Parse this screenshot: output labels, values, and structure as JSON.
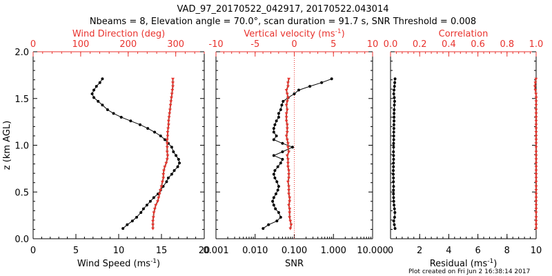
{
  "figure": {
    "title_line1": "VAD_97_20170522_042917, 20170522.043014",
    "title_line2": "Nbeams = 8, Elevation angle = 70.0°, scan duration = 91.7 s, SNR Threshold = 0.008",
    "footer": "Plot created on Fri Jun  2 16:38:14 2017",
    "colors": {
      "primary": "#000000",
      "secondary": "#e8322d",
      "secondary_line": "#b04a3a"
    }
  },
  "chart_data": [
    {
      "type": "line",
      "panel": "wind",
      "ylabel": "z (km AGL)",
      "ylim": [
        0,
        2
      ],
      "yticks": [
        "0.0",
        "0.5",
        "1.0",
        "1.5",
        "2.0"
      ],
      "x_bottom": {
        "label": "Wind Speed (ms",
        "sup": "-1",
        "tail": ")",
        "lim": [
          0,
          20
        ],
        "ticks": [
          "0",
          "5",
          "10",
          "15",
          "20"
        ]
      },
      "x_top": {
        "label": "Wind Direction (deg)",
        "lim": [
          0,
          360
        ],
        "ticks": [
          "0",
          "100",
          "200",
          "300"
        ]
      },
      "series": [
        {
          "name": "Wind Speed",
          "axis": "bottom",
          "color": "#000000",
          "z": [
            0.11,
            0.15,
            0.19,
            0.23,
            0.28,
            0.32,
            0.36,
            0.4,
            0.44,
            0.48,
            0.52,
            0.56,
            0.61,
            0.65,
            0.69,
            0.73,
            0.77,
            0.81,
            0.85,
            0.89,
            0.93,
            0.98,
            1.02,
            1.06,
            1.1,
            1.14,
            1.18,
            1.22,
            1.26,
            1.3,
            1.34,
            1.38,
            1.43,
            1.47,
            1.51,
            1.55,
            1.59,
            1.63,
            1.67,
            1.71
          ],
          "values": [
            10.5,
            11.0,
            11.6,
            12.1,
            12.6,
            12.9,
            13.3,
            13.7,
            14.1,
            14.6,
            14.9,
            15.2,
            15.6,
            15.8,
            16.2,
            16.5,
            16.9,
            17.1,
            17.0,
            16.7,
            16.4,
            16.2,
            15.8,
            15.4,
            14.9,
            14.2,
            13.4,
            12.5,
            11.4,
            10.3,
            9.4,
            8.7,
            8.1,
            7.6,
            7.1,
            6.9,
            7.1,
            7.4,
            7.8,
            8.1
          ]
        },
        {
          "name": "Wind Direction",
          "axis": "top",
          "color": "#b04a3a",
          "z": [
            0.11,
            0.15,
            0.19,
            0.23,
            0.28,
            0.32,
            0.36,
            0.4,
            0.44,
            0.48,
            0.52,
            0.56,
            0.61,
            0.65,
            0.69,
            0.73,
            0.77,
            0.81,
            0.85,
            0.89,
            0.93,
            0.98,
            1.02,
            1.06,
            1.1,
            1.14,
            1.18,
            1.22,
            1.26,
            1.3,
            1.34,
            1.38,
            1.43,
            1.47,
            1.51,
            1.55,
            1.59,
            1.63,
            1.67,
            1.71
          ],
          "values": [
            252,
            252,
            252,
            253,
            254,
            256,
            258,
            262,
            264,
            266,
            268,
            270,
            272,
            274,
            274,
            275,
            277,
            280,
            282,
            283,
            282,
            282,
            282,
            282,
            283,
            283,
            284,
            285,
            285,
            286,
            287,
            288,
            289,
            290,
            291,
            292,
            293,
            294,
            294,
            294
          ]
        }
      ]
    },
    {
      "type": "line",
      "panel": "snr_w",
      "ylim": [
        0,
        2
      ],
      "x_bottom": {
        "label": "SNR",
        "scale": "log",
        "lim": [
          0.001,
          10
        ],
        "ticks": [
          "0.001",
          "0.010",
          "0.100",
          "1.000",
          "10.000"
        ],
        "tick_values": [
          0.001,
          0.01,
          0.1,
          1,
          10
        ]
      },
      "x_top": {
        "label": "Vertical velocity (ms",
        "sup": "-1",
        "tail": ")",
        "lim": [
          -10,
          10
        ],
        "ticks": [
          "-10",
          "-5",
          "0",
          "5",
          "10"
        ]
      },
      "reference_line": {
        "axis": "top",
        "value": 0,
        "style": "dotted"
      },
      "series": [
        {
          "name": "SNR",
          "axis": "bottom",
          "color": "#000000",
          "z": [
            0.11,
            0.15,
            0.19,
            0.23,
            0.28,
            0.32,
            0.36,
            0.4,
            0.44,
            0.48,
            0.52,
            0.56,
            0.61,
            0.65,
            0.69,
            0.73,
            0.77,
            0.81,
            0.85,
            0.89,
            0.93,
            0.98,
            1.02,
            1.06,
            1.1,
            1.14,
            1.18,
            1.22,
            1.26,
            1.3,
            1.34,
            1.38,
            1.43,
            1.47,
            1.51,
            1.55,
            1.59,
            1.63,
            1.67,
            1.71
          ],
          "values": [
            0.016,
            0.022,
            0.036,
            0.045,
            0.04,
            0.033,
            0.03,
            0.028,
            0.03,
            0.034,
            0.038,
            0.04,
            0.036,
            0.032,
            0.03,
            0.032,
            0.038,
            0.045,
            0.05,
            0.03,
            0.05,
            0.09,
            0.05,
            0.03,
            0.035,
            0.03,
            0.03,
            0.032,
            0.035,
            0.04,
            0.04,
            0.045,
            0.048,
            0.052,
            0.07,
            0.1,
            0.13,
            0.25,
            0.5,
            0.9
          ]
        },
        {
          "name": "Vertical velocity",
          "axis": "top",
          "color": "#b04a3a",
          "z": [
            0.11,
            0.15,
            0.19,
            0.23,
            0.28,
            0.32,
            0.36,
            0.4,
            0.44,
            0.48,
            0.52,
            0.56,
            0.61,
            0.65,
            0.69,
            0.73,
            0.77,
            0.81,
            0.85,
            0.89,
            0.93,
            0.98,
            1.02,
            1.06,
            1.1,
            1.14,
            1.18,
            1.22,
            1.26,
            1.3,
            1.34,
            1.38,
            1.43,
            1.47,
            1.51,
            1.55,
            1.59,
            1.63,
            1.67,
            1.71
          ],
          "values": [
            -0.5,
            -0.4,
            -0.5,
            -0.6,
            -0.6,
            -0.6,
            -0.7,
            -0.6,
            -0.6,
            -0.7,
            -0.7,
            -0.7,
            -0.8,
            -0.7,
            -0.7,
            -0.7,
            -0.8,
            -0.8,
            -0.8,
            -0.9,
            -0.7,
            -0.8,
            -0.8,
            -0.9,
            -1.0,
            -0.9,
            -0.9,
            -0.9,
            -1.0,
            -1.0,
            -1.0,
            -0.9,
            -1.0,
            -0.9,
            -0.8,
            -0.9,
            -1.0,
            -0.8,
            -0.8,
            -0.7
          ]
        }
      ]
    },
    {
      "type": "line",
      "panel": "residual",
      "ylim": [
        0,
        2
      ],
      "x_bottom": {
        "label": "Residual (ms",
        "sup": "-1",
        "tail": ")",
        "lim": [
          0,
          10
        ],
        "ticks": [
          "0",
          "2",
          "4",
          "6",
          "8",
          "10"
        ]
      },
      "x_top": {
        "label": "Correlation",
        "lim": [
          0,
          1
        ],
        "ticks": [
          "0.0",
          "0.2",
          "0.4",
          "0.6",
          "0.8",
          "1.0"
        ]
      },
      "series": [
        {
          "name": "Residual",
          "axis": "bottom",
          "color": "#000000",
          "z": [
            0.11,
            0.15,
            0.19,
            0.23,
            0.28,
            0.32,
            0.36,
            0.4,
            0.44,
            0.48,
            0.52,
            0.56,
            0.61,
            0.65,
            0.69,
            0.73,
            0.77,
            0.81,
            0.85,
            0.89,
            0.93,
            0.98,
            1.02,
            1.06,
            1.1,
            1.14,
            1.18,
            1.22,
            1.26,
            1.3,
            1.34,
            1.38,
            1.43,
            1.47,
            1.51,
            1.55,
            1.59,
            1.63,
            1.67,
            1.71
          ],
          "values": [
            0.31,
            0.26,
            0.22,
            0.28,
            0.3,
            0.27,
            0.24,
            0.22,
            0.21,
            0.2,
            0.2,
            0.21,
            0.2,
            0.2,
            0.19,
            0.19,
            0.2,
            0.2,
            0.21,
            0.21,
            0.2,
            0.21,
            0.21,
            0.22,
            0.22,
            0.22,
            0.23,
            0.23,
            0.24,
            0.24,
            0.24,
            0.25,
            0.26,
            0.28,
            0.26,
            0.22,
            0.24,
            0.27,
            0.29,
            0.31
          ]
        },
        {
          "name": "Correlation",
          "axis": "top",
          "color": "#b04a3a",
          "z": [
            0.11,
            0.15,
            0.19,
            0.23,
            0.28,
            0.32,
            0.36,
            0.4,
            0.44,
            0.48,
            0.52,
            0.56,
            0.61,
            0.65,
            0.69,
            0.73,
            0.77,
            0.81,
            0.85,
            0.89,
            0.93,
            0.98,
            1.02,
            1.06,
            1.1,
            1.14,
            1.18,
            1.22,
            1.26,
            1.3,
            1.34,
            1.38,
            1.43,
            1.47,
            1.51,
            1.55,
            1.59,
            1.63,
            1.67,
            1.71
          ],
          "values": [
            1.0,
            1.0,
            1.0,
            1.0,
            1.0,
            1.0,
            1.0,
            1.0,
            1.0,
            1.0,
            1.0,
            1.0,
            1.0,
            1.0,
            1.0,
            1.0,
            1.0,
            1.0,
            1.0,
            1.0,
            1.0,
            1.0,
            1.0,
            1.0,
            1.0,
            1.0,
            1.0,
            1.0,
            1.0,
            1.0,
            1.0,
            1.0,
            1.0,
            1.0,
            1.0,
            0.999,
            0.995,
            0.992,
            0.995,
            0.999
          ]
        }
      ]
    }
  ]
}
